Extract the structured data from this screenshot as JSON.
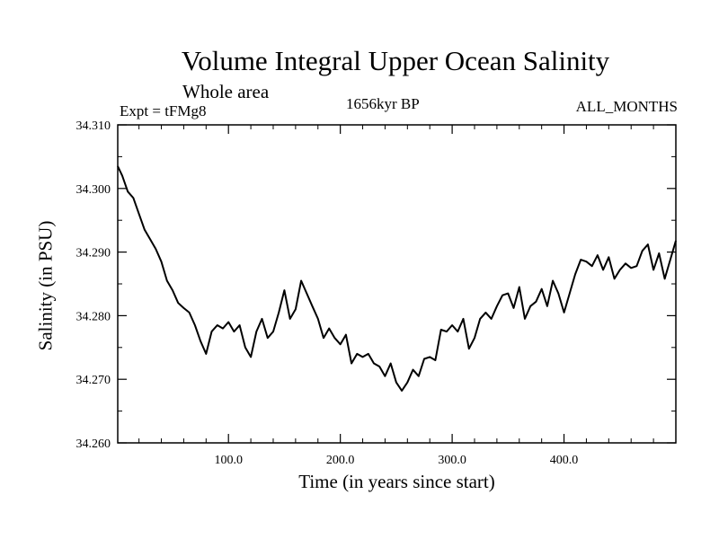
{
  "chart_data": {
    "type": "line",
    "title": "Volume Integral Upper Ocean Salinity",
    "subtitle": "Whole area",
    "experiment": "Expt = tFMg8",
    "period": "1656kyr BP",
    "months": "ALL_MONTHS",
    "xlabel": "Time (in years since start)",
    "ylabel": "Salinity (in PSU)",
    "xlim": [
      1,
      500
    ],
    "ylim": [
      34.26,
      34.31
    ],
    "xticks": [
      100,
      200,
      300,
      400
    ],
    "xtick_labels": [
      "100.0",
      "200.0",
      "300.0",
      "400.0"
    ],
    "yticks": [
      34.26,
      34.27,
      34.28,
      34.29,
      34.3,
      34.31
    ],
    "ytick_labels": [
      "34.260",
      "34.270",
      "34.280",
      "34.290",
      "34.300",
      "34.310"
    ],
    "series": [
      {
        "name": "Salinity",
        "x": [
          1,
          5,
          10,
          15,
          20,
          25,
          30,
          35,
          40,
          45,
          50,
          55,
          60,
          65,
          70,
          75,
          80,
          85,
          90,
          95,
          100,
          105,
          110,
          115,
          120,
          125,
          130,
          135,
          140,
          145,
          150,
          155,
          160,
          165,
          170,
          175,
          180,
          185,
          190,
          195,
          200,
          205,
          210,
          215,
          220,
          225,
          230,
          235,
          240,
          245,
          250,
          255,
          260,
          265,
          270,
          275,
          280,
          285,
          290,
          295,
          300,
          305,
          310,
          315,
          320,
          325,
          330,
          335,
          340,
          345,
          350,
          355,
          360,
          365,
          370,
          375,
          380,
          385,
          390,
          395,
          400,
          405,
          410,
          415,
          420,
          425,
          430,
          435,
          440,
          445,
          450,
          455,
          460,
          465,
          470,
          475,
          480,
          485,
          490,
          495,
          500
        ],
        "values": [
          34.3035,
          34.302,
          34.2995,
          34.2985,
          34.296,
          34.2935,
          34.292,
          34.2905,
          34.2885,
          34.2855,
          34.284,
          34.282,
          34.2812,
          34.2805,
          34.2785,
          34.276,
          34.274,
          34.2775,
          34.2785,
          34.278,
          34.279,
          34.2775,
          34.2785,
          34.275,
          34.2735,
          34.2775,
          34.2795,
          34.2765,
          34.2775,
          34.2805,
          34.284,
          34.2795,
          34.281,
          34.2855,
          34.2835,
          34.2815,
          34.2795,
          34.2765,
          34.278,
          34.2765,
          34.2755,
          34.277,
          34.2725,
          34.274,
          34.2735,
          34.274,
          34.2725,
          34.272,
          34.2705,
          34.2725,
          34.2695,
          34.2682,
          34.2695,
          34.2715,
          34.2705,
          34.2732,
          34.2735,
          34.273,
          34.2778,
          34.2775,
          34.2785,
          34.2775,
          34.2795,
          34.2748,
          34.2765,
          34.2795,
          34.2805,
          34.2795,
          34.2815,
          34.2832,
          34.2835,
          34.2812,
          34.2845,
          34.2795,
          34.2815,
          34.2822,
          34.2842,
          34.2815,
          34.2855,
          34.2835,
          34.2805,
          34.2835,
          34.2865,
          34.2888,
          34.2885,
          34.2878,
          34.2895,
          34.2872,
          34.2892,
          34.2858,
          34.2872,
          34.2882,
          34.2875,
          34.2878,
          34.2902,
          34.2912,
          34.2872,
          34.2898,
          34.2858,
          34.2888,
          34.2918
        ]
      }
    ]
  }
}
